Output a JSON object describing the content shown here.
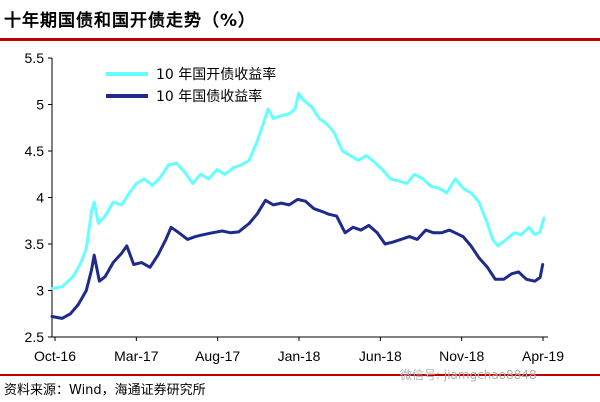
{
  "title": "十年期国债和国开债走势（%）",
  "source": "资料来源：Wind，海通证券研究所",
  "watermark": "微信号: jiamgchao8848",
  "chart_data": {
    "type": "line",
    "x_tick_labels": [
      "Oct-16",
      "Mar-17",
      "Aug-17",
      "Jan-18",
      "Jun-18",
      "Nov-18",
      "Apr-19"
    ],
    "y_tick_labels": [
      "2.5",
      "3",
      "3.5",
      "4",
      "4.5",
      "5",
      "5.5"
    ],
    "ylim": [
      2.5,
      5.5
    ],
    "xlim": [
      "2016-10-01",
      "2019-04-30"
    ],
    "legend_position": "top-left",
    "grid": false,
    "series": [
      {
        "name": "10 年国开债收益率",
        "color": "#66ffff",
        "points": [
          [
            "2016-10-01",
            3.02
          ],
          [
            "2016-10-20",
            3.04
          ],
          [
            "2016-11-10",
            3.15
          ],
          [
            "2016-11-25",
            3.3
          ],
          [
            "2016-12-05",
            3.45
          ],
          [
            "2016-12-15",
            3.85
          ],
          [
            "2016-12-20",
            3.95
          ],
          [
            "2016-12-28",
            3.72
          ],
          [
            "2017-01-10",
            3.8
          ],
          [
            "2017-01-25",
            3.95
          ],
          [
            "2017-02-10",
            3.92
          ],
          [
            "2017-02-25",
            4.05
          ],
          [
            "2017-03-10",
            4.15
          ],
          [
            "2017-03-25",
            4.2
          ],
          [
            "2017-04-10",
            4.13
          ],
          [
            "2017-04-25",
            4.22
          ],
          [
            "2017-05-10",
            4.35
          ],
          [
            "2017-05-25",
            4.37
          ],
          [
            "2017-06-10",
            4.27
          ],
          [
            "2017-06-25",
            4.15
          ],
          [
            "2017-07-10",
            4.25
          ],
          [
            "2017-07-25",
            4.2
          ],
          [
            "2017-08-10",
            4.3
          ],
          [
            "2017-08-25",
            4.25
          ],
          [
            "2017-09-10",
            4.32
          ],
          [
            "2017-09-25",
            4.35
          ],
          [
            "2017-10-10",
            4.4
          ],
          [
            "2017-10-25",
            4.6
          ],
          [
            "2017-11-05",
            4.78
          ],
          [
            "2017-11-15",
            4.95
          ],
          [
            "2017-11-25",
            4.85
          ],
          [
            "2017-12-10",
            4.88
          ],
          [
            "2017-12-25",
            4.9
          ],
          [
            "2018-01-05",
            4.95
          ],
          [
            "2018-01-12",
            5.12
          ],
          [
            "2018-01-20",
            5.05
          ],
          [
            "2018-02-05",
            4.98
          ],
          [
            "2018-02-20",
            4.85
          ],
          [
            "2018-03-05",
            4.8
          ],
          [
            "2018-03-20",
            4.7
          ],
          [
            "2018-04-05",
            4.5
          ],
          [
            "2018-04-20",
            4.45
          ],
          [
            "2018-05-05",
            4.4
          ],
          [
            "2018-05-20",
            4.45
          ],
          [
            "2018-06-05",
            4.38
          ],
          [
            "2018-06-20",
            4.3
          ],
          [
            "2018-07-05",
            4.2
          ],
          [
            "2018-07-20",
            4.18
          ],
          [
            "2018-08-05",
            4.15
          ],
          [
            "2018-08-20",
            4.25
          ],
          [
            "2018-09-05",
            4.2
          ],
          [
            "2018-09-20",
            4.12
          ],
          [
            "2018-10-05",
            4.1
          ],
          [
            "2018-10-20",
            4.05
          ],
          [
            "2018-11-05",
            4.2
          ],
          [
            "2018-11-20",
            4.1
          ],
          [
            "2018-12-05",
            4.05
          ],
          [
            "2018-12-20",
            3.95
          ],
          [
            "2019-01-05",
            3.72
          ],
          [
            "2019-01-15",
            3.55
          ],
          [
            "2019-01-25",
            3.48
          ],
          [
            "2019-02-10",
            3.55
          ],
          [
            "2019-02-25",
            3.62
          ],
          [
            "2019-03-10",
            3.6
          ],
          [
            "2019-03-25",
            3.68
          ],
          [
            "2019-04-05",
            3.6
          ],
          [
            "2019-04-15",
            3.63
          ],
          [
            "2019-04-22",
            3.78
          ]
        ]
      },
      {
        "name": "10 年国债收益率",
        "color": "#1f2a8a",
        "points": [
          [
            "2016-10-01",
            2.72
          ],
          [
            "2016-10-20",
            2.7
          ],
          [
            "2016-11-05",
            2.75
          ],
          [
            "2016-11-20",
            2.85
          ],
          [
            "2016-12-05",
            3.0
          ],
          [
            "2016-12-15",
            3.22
          ],
          [
            "2016-12-20",
            3.38
          ],
          [
            "2016-12-30",
            3.1
          ],
          [
            "2017-01-10",
            3.15
          ],
          [
            "2017-01-25",
            3.3
          ],
          [
            "2017-02-10",
            3.4
          ],
          [
            "2017-02-20",
            3.48
          ],
          [
            "2017-03-05",
            3.28
          ],
          [
            "2017-03-20",
            3.3
          ],
          [
            "2017-04-05",
            3.25
          ],
          [
            "2017-04-20",
            3.38
          ],
          [
            "2017-05-05",
            3.55
          ],
          [
            "2017-05-15",
            3.68
          ],
          [
            "2017-05-30",
            3.62
          ],
          [
            "2017-06-15",
            3.55
          ],
          [
            "2017-06-30",
            3.58
          ],
          [
            "2017-07-15",
            3.6
          ],
          [
            "2017-08-01",
            3.62
          ],
          [
            "2017-08-20",
            3.64
          ],
          [
            "2017-09-05",
            3.62
          ],
          [
            "2017-09-20",
            3.63
          ],
          [
            "2017-10-10",
            3.72
          ],
          [
            "2017-10-25",
            3.82
          ],
          [
            "2017-11-10",
            3.97
          ],
          [
            "2017-11-25",
            3.92
          ],
          [
            "2017-12-10",
            3.94
          ],
          [
            "2017-12-25",
            3.92
          ],
          [
            "2018-01-10",
            3.98
          ],
          [
            "2018-01-25",
            3.96
          ],
          [
            "2018-02-10",
            3.88
          ],
          [
            "2018-02-25",
            3.85
          ],
          [
            "2018-03-10",
            3.82
          ],
          [
            "2018-03-25",
            3.8
          ],
          [
            "2018-04-10",
            3.62
          ],
          [
            "2018-04-25",
            3.68
          ],
          [
            "2018-05-10",
            3.65
          ],
          [
            "2018-05-25",
            3.7
          ],
          [
            "2018-06-10",
            3.62
          ],
          [
            "2018-06-25",
            3.5
          ],
          [
            "2018-07-10",
            3.52
          ],
          [
            "2018-07-25",
            3.55
          ],
          [
            "2018-08-10",
            3.58
          ],
          [
            "2018-08-25",
            3.55
          ],
          [
            "2018-09-10",
            3.65
          ],
          [
            "2018-09-25",
            3.62
          ],
          [
            "2018-10-10",
            3.62
          ],
          [
            "2018-10-25",
            3.65
          ],
          [
            "2018-11-05",
            3.62
          ],
          [
            "2018-11-20",
            3.58
          ],
          [
            "2018-12-05",
            3.48
          ],
          [
            "2018-12-20",
            3.35
          ],
          [
            "2019-01-05",
            3.25
          ],
          [
            "2019-01-20",
            3.12
          ],
          [
            "2019-02-05",
            3.12
          ],
          [
            "2019-02-20",
            3.18
          ],
          [
            "2019-03-05",
            3.2
          ],
          [
            "2019-03-20",
            3.12
          ],
          [
            "2019-04-05",
            3.1
          ],
          [
            "2019-04-15",
            3.14
          ],
          [
            "2019-04-20",
            3.28
          ]
        ]
      }
    ]
  }
}
